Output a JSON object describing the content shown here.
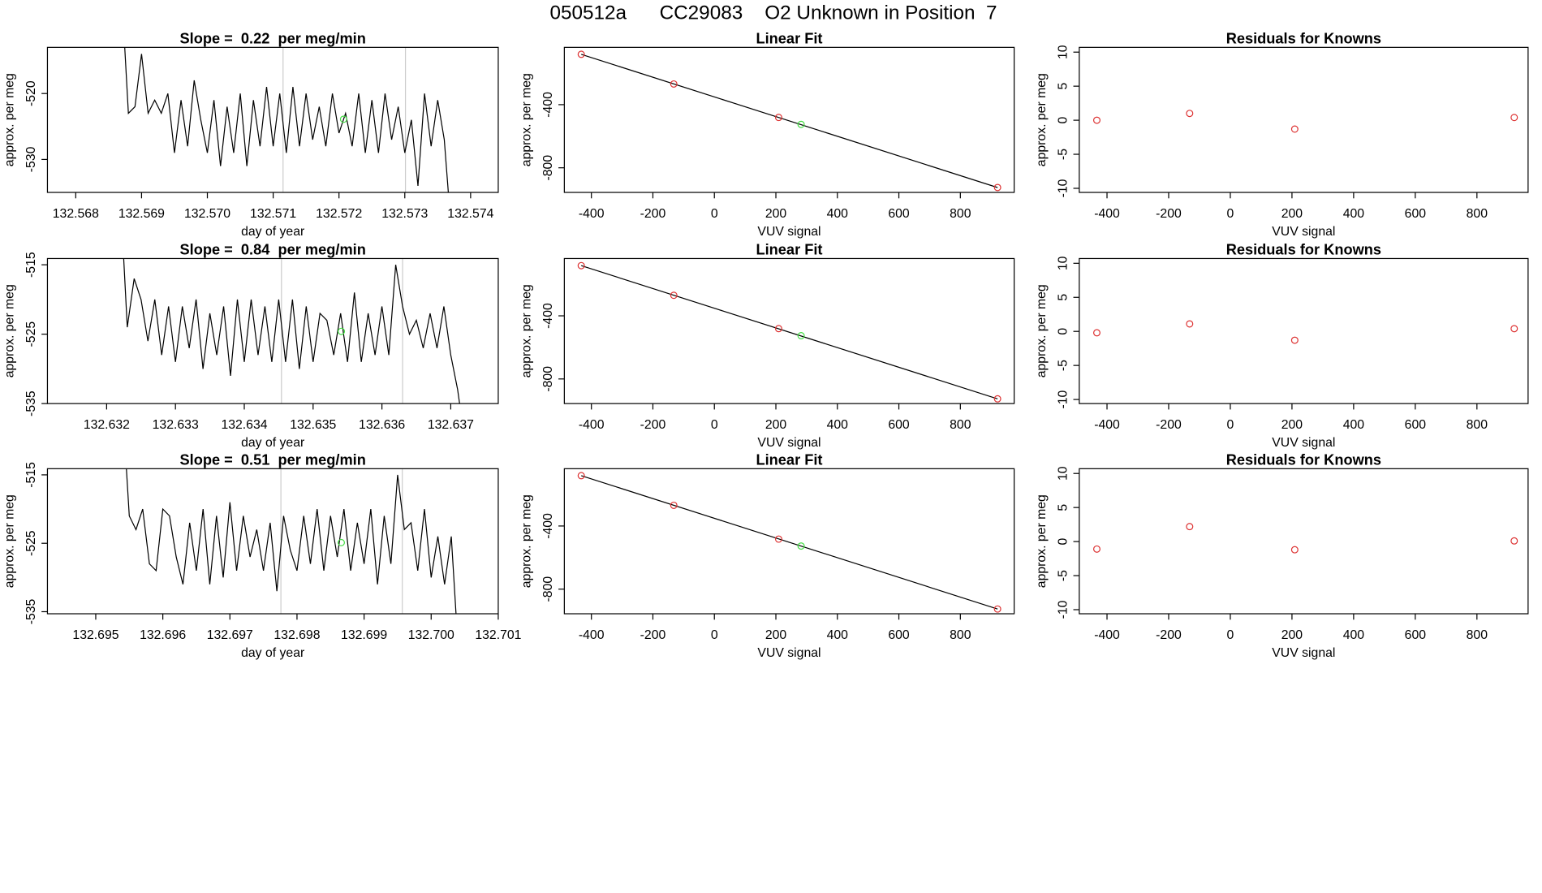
{
  "title": "050512a      CC29083    O2 Unknown in Position  7",
  "chart_data": [
    {
      "type": "line",
      "title": "Slope =  0.22  per meg/min",
      "x_label": "day of year",
      "y_label": "approx. per meg",
      "color": "#000000",
      "x": [
        132.5687,
        132.5688,
        132.5689,
        132.569,
        132.5691,
        132.5692,
        132.5693,
        132.5694,
        132.5695,
        132.5696,
        132.5697,
        132.5698,
        132.5699,
        132.57,
        132.5701,
        132.5702,
        132.5703,
        132.5704,
        132.5705,
        132.5706,
        132.5707,
        132.5708,
        132.5709,
        132.571,
        132.5711,
        132.5712,
        132.5713,
        132.5714,
        132.5715,
        132.5716,
        132.5717,
        132.5718,
        132.5719,
        132.572,
        132.5721,
        132.5722,
        132.5723,
        132.5724,
        132.5725,
        132.5726,
        132.5727,
        132.5728,
        132.5729,
        132.573,
        132.5731,
        132.5732,
        132.5733,
        132.5734,
        132.5735,
        132.5736,
        132.5737
      ],
      "values": [
        -505,
        -523,
        -522,
        -514,
        -523,
        -521,
        -523,
        -520,
        -529,
        -521,
        -528,
        -518,
        -524,
        -529,
        -521,
        -531,
        -522,
        -529,
        -520,
        -531,
        -521,
        -528,
        -519,
        -528,
        -520,
        -529,
        -519,
        -528,
        -520,
        -527,
        -522,
        -528,
        -520,
        -526,
        -523,
        -528,
        -520,
        -529,
        -521,
        -529,
        -520,
        -527,
        -522,
        -529,
        -524,
        -534,
        -520,
        -528,
        -521,
        -527,
        -540
      ],
      "vlines": [
        132.57115,
        132.57301
      ],
      "vline_color": "#cccccc",
      "highlight": {
        "x": 132.57207,
        "y": -523.9,
        "color": "#44dd44"
      },
      "xlim": [
        132.56757,
        132.57442
      ],
      "ylim": [
        -535,
        -513
      ],
      "xticks": [
        132.568,
        132.569,
        {
          "value": 132.57,
          "label": "132.570"
        },
        132.571,
        132.572,
        132.573,
        132.574
      ],
      "yticks": [
        -530,
        -520
      ]
    },
    {
      "type": "fit",
      "title": "Linear Fit",
      "x_label": "VUV signal",
      "y_label": "approx. per meg",
      "color": "#dd3333",
      "x": [
        -433,
        -132,
        209,
        921
      ],
      "values": [
        -81,
        -269,
        -481,
        -925
      ],
      "highlight": {
        "x": 282,
        "y": -525,
        "color": "#44dd44"
      },
      "fit_line": {
        "x": [
          -433,
          921
        ],
        "values": [
          -81,
          -925
        ],
        "color": "#000000"
      },
      "xlim": [
        -488,
        975
      ],
      "ylim": [
        -956,
        -37
      ],
      "xticks": [
        -400,
        -200,
        0,
        200,
        400,
        600,
        800
      ],
      "yticks": [
        -800,
        -400
      ]
    },
    {
      "type": "scatter",
      "title": "Residuals for Knowns",
      "x_label": "VUV signal",
      "y_label": "approx. per meg",
      "color": "#dd3333",
      "x": [
        -433,
        -132,
        209,
        921
      ],
      "values": [
        0,
        1,
        -1.3,
        0.4
      ],
      "xlim": [
        -490,
        966
      ],
      "ylim": [
        -10.6,
        10.7
      ],
      "xticks": [
        -400,
        -200,
        0,
        200,
        400,
        600,
        800
      ],
      "yticks": [
        -10,
        -5,
        0,
        5,
        10
      ]
    },
    {
      "type": "line",
      "title": "Slope =  0.84  per meg/min",
      "x_label": "day of year",
      "y_label": "approx. per meg",
      "color": "#000000",
      "x": [
        132.6322,
        132.6323,
        132.6324,
        132.6325,
        132.6326,
        132.6327,
        132.6328,
        132.6329,
        132.633,
        132.6331,
        132.6332,
        132.6333,
        132.6334,
        132.6335,
        132.6336,
        132.6337,
        132.6338,
        132.6339,
        132.634,
        132.6341,
        132.6342,
        132.6343,
        132.6344,
        132.6345,
        132.6346,
        132.6347,
        132.6348,
        132.6349,
        132.635,
        132.6351,
        132.6352,
        132.6353,
        132.6354,
        132.6355,
        132.6356,
        132.6357,
        132.6358,
        132.6359,
        132.636,
        132.6361,
        132.6362,
        132.6363,
        132.6364,
        132.6365,
        132.6366,
        132.6367,
        132.6368,
        132.6369,
        132.637,
        132.6371,
        132.6372
      ],
      "values": [
        -505,
        -524,
        -517,
        -520,
        -526,
        -520,
        -528,
        -521,
        -529,
        -521,
        -527,
        -520,
        -530,
        -522,
        -528,
        -521,
        -531,
        -520,
        -529,
        -520,
        -528,
        -521,
        -529,
        -520,
        -529,
        -520,
        -530,
        -521,
        -529,
        -522,
        -523,
        -528,
        -522,
        -529,
        -519,
        -529,
        -522,
        -528,
        -521,
        -528,
        -515,
        -521,
        -525,
        -523,
        -527,
        -522,
        -527,
        -521,
        -528,
        -533,
        -540
      ],
      "vlines": [
        132.63454,
        132.6363
      ],
      "vline_color": "#cccccc",
      "highlight": {
        "x": 132.63541,
        "y": -524.6,
        "color": "#44dd44"
      },
      "xlim": [
        132.63114,
        132.63769
      ],
      "ylim": [
        -535,
        -514.1
      ],
      "xticks": [
        132.632,
        132.633,
        132.634,
        132.635,
        132.636,
        132.637
      ],
      "yticks": [
        -535,
        -525,
        -515
      ]
    },
    {
      "type": "fit",
      "title": "Linear Fit",
      "x_label": "VUV signal",
      "y_label": "approx. per meg",
      "color": "#dd3333",
      "x": [
        -433,
        -132,
        209,
        921
      ],
      "values": [
        -82,
        -270,
        -481,
        -926
      ],
      "highlight": {
        "x": 282,
        "y": -526,
        "color": "#44dd44"
      },
      "fit_line": {
        "x": [
          -433,
          921
        ],
        "values": [
          -82,
          -926
        ],
        "color": "#000000"
      },
      "xlim": [
        -488,
        975
      ],
      "ylim": [
        -956,
        -37
      ],
      "xticks": [
        -400,
        -200,
        0,
        200,
        400,
        600,
        800
      ],
      "yticks": [
        -800,
        -400
      ]
    },
    {
      "type": "scatter",
      "title": "Residuals for Knowns",
      "x_label": "VUV signal",
      "y_label": "approx. per meg",
      "color": "#dd3333",
      "x": [
        -433,
        -132,
        209,
        921
      ],
      "values": [
        -0.2,
        1.1,
        -1.3,
        0.4
      ],
      "xlim": [
        -490,
        966
      ],
      "ylim": [
        -10.6,
        10.7
      ],
      "xticks": [
        -400,
        -200,
        0,
        200,
        400,
        600,
        800
      ],
      "yticks": [
        -10,
        -5,
        0,
        5,
        10
      ]
    },
    {
      "type": "line",
      "title": "Slope =  0.51  per meg/min",
      "x_label": "day of year",
      "y_label": "approx. per meg",
      "color": "#000000",
      "x": [
        132.6954,
        132.6955,
        132.6956,
        132.6957,
        132.6958,
        132.6959,
        132.696,
        132.6961,
        132.6962,
        132.6963,
        132.6964,
        132.6965,
        132.6966,
        132.6967,
        132.6968,
        132.6969,
        132.697,
        132.6971,
        132.6972,
        132.6973,
        132.6974,
        132.6975,
        132.6976,
        132.6977,
        132.6978,
        132.6979,
        132.698,
        132.6981,
        132.6982,
        132.6983,
        132.6984,
        132.6985,
        132.6986,
        132.6987,
        132.6988,
        132.6989,
        132.699,
        132.6991,
        132.6992,
        132.6993,
        132.6994,
        132.6995,
        132.6996,
        132.6997,
        132.6998,
        132.6999,
        132.7,
        132.7001,
        132.7002,
        132.7003,
        132.7004
      ],
      "values": [
        -505,
        -521,
        -523,
        -520,
        -528,
        -529,
        -520,
        -521,
        -527,
        -531,
        -522,
        -529,
        -520,
        -531,
        -521,
        -530,
        -519,
        -529,
        -521,
        -527,
        -523,
        -529,
        -522,
        -532,
        -521,
        -526,
        -529,
        -521,
        -528,
        -520,
        -529,
        -521,
        -527,
        -520,
        -529,
        -522,
        -528,
        -520,
        -531,
        -521,
        -528,
        -515,
        -523,
        -522,
        -529,
        -520,
        -530,
        -524,
        -531,
        -524,
        -540
      ],
      "vlines": [
        132.69776,
        132.69957
      ],
      "vline_color": "#cccccc",
      "highlight": {
        "x": 132.69866,
        "y": -524.9,
        "color": "#44dd44"
      },
      "xlim": [
        132.69428,
        132.701
      ],
      "ylim": [
        -535.3,
        -514.1
      ],
      "xticks": [
        132.695,
        132.696,
        132.697,
        132.698,
        132.699,
        {
          "value": 132.7,
          "label": "132.700"
        },
        132.701
      ],
      "yticks": [
        -535,
        -525,
        -515
      ]
    },
    {
      "type": "fit",
      "title": "Linear Fit",
      "x_label": "VUV signal",
      "y_label": "approx. per meg",
      "color": "#dd3333",
      "x": [
        -433,
        -132,
        209,
        921
      ],
      "values": [
        -81,
        -269,
        -483,
        -926
      ],
      "highlight": {
        "x": 282,
        "y": -527,
        "color": "#44dd44"
      },
      "fit_line": {
        "x": [
          -433,
          921
        ],
        "values": [
          -81,
          -926
        ],
        "color": "#000000"
      },
      "xlim": [
        -488,
        975
      ],
      "ylim": [
        -956,
        -37
      ],
      "xticks": [
        -400,
        -200,
        0,
        200,
        400,
        600,
        800
      ],
      "yticks": [
        -800,
        -400
      ]
    },
    {
      "type": "scatter",
      "title": "Residuals for Knowns",
      "x_label": "VUV signal",
      "y_label": "approx. per meg",
      "color": "#dd3333",
      "x": [
        -433,
        -132,
        209,
        921
      ],
      "values": [
        -1.1,
        2.2,
        -1.2,
        0.1
      ],
      "xlim": [
        -490,
        966
      ],
      "ylim": [
        -10.6,
        10.7
      ],
      "xticks": [
        -400,
        -200,
        0,
        200,
        400,
        600,
        800
      ],
      "yticks": [
        -10,
        -5,
        0,
        5,
        10
      ]
    }
  ]
}
